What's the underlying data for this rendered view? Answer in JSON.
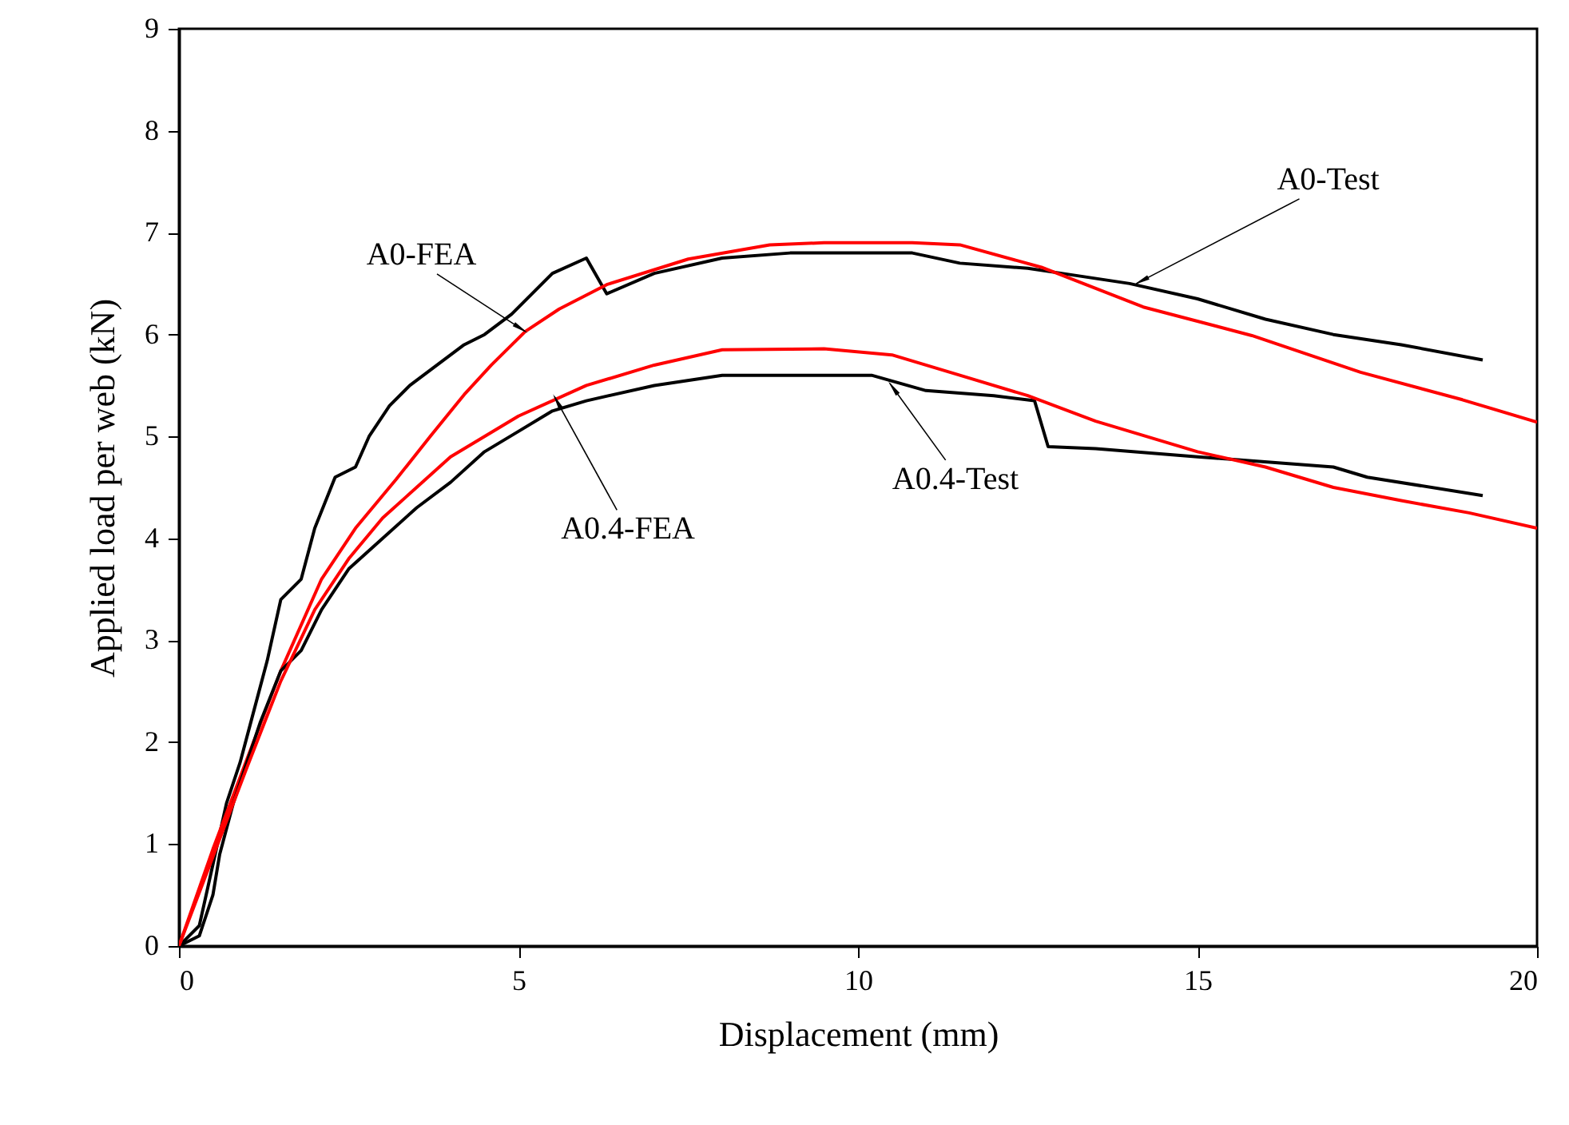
{
  "chart_data": {
    "type": "line",
    "xlabel": "Displacement (mm)",
    "ylabel": "Applied load per web (kN)",
    "xlim": [
      0,
      20
    ],
    "xticks": [
      0,
      5,
      10,
      15,
      20
    ],
    "ylim": [
      0,
      9
    ],
    "yticks": [
      0,
      1,
      2,
      3,
      4,
      5,
      6,
      7,
      8,
      9
    ],
    "grid": false,
    "marker": "none",
    "line_style": "solid",
    "series": [
      {
        "color": "#000000",
        "x": [
          0,
          0.3,
          0.5,
          0.7,
          0.9,
          1.1,
          1.3,
          1.5,
          1.8,
          2.0,
          2.3,
          2.6,
          2.8,
          3.1,
          3.4,
          3.8,
          4.2,
          4.5,
          4.9,
          5.2,
          5.5,
          6.0,
          6.3,
          7,
          8,
          9,
          10.8,
          11.5,
          12.5,
          13,
          14,
          15,
          16,
          17,
          18,
          19.2
        ],
        "values": [
          0,
          0.2,
          0.8,
          1.4,
          1.8,
          2.3,
          2.8,
          3.4,
          3.6,
          4.1,
          4.6,
          4.7,
          5.0,
          5.3,
          5.5,
          5.7,
          5.9,
          6.0,
          6.2,
          6.4,
          6.6,
          6.75,
          6.4,
          6.6,
          6.75,
          6.8,
          6.8,
          6.7,
          6.65,
          6.6,
          6.5,
          6.35,
          6.15,
          6.0,
          5.9,
          5.75
        ]
      },
      {
        "color": "#ff0000",
        "x": [
          0,
          0.5,
          1.0,
          1.5,
          2.1,
          2.6,
          3.2,
          3.7,
          4.2,
          4.6,
          5.1,
          5.6,
          6.3,
          7.5,
          8.7,
          9.5,
          10.8,
          11.5,
          12.7,
          14.2,
          15.8,
          17.4,
          18.9,
          20
        ],
        "values": [
          0,
          0.95,
          1.83,
          2.7,
          3.6,
          4.1,
          4.58,
          5.0,
          5.41,
          5.7,
          6.03,
          6.25,
          6.49,
          6.74,
          6.88,
          6.9,
          6.9,
          6.88,
          6.66,
          6.27,
          5.99,
          5.63,
          5.36,
          5.14
        ]
      },
      {
        "color": "#000000",
        "x": [
          0,
          0.3,
          0.5,
          0.6,
          0.8,
          1,
          1.2,
          1.5,
          1.8,
          2.1,
          2.5,
          3,
          3.5,
          4,
          4.5,
          5,
          5.5,
          6,
          7,
          8,
          10.2,
          11,
          12,
          12.6,
          12.8,
          13.5,
          15,
          17,
          17.5,
          19.2
        ],
        "values": [
          0,
          0.1,
          0.5,
          0.9,
          1.4,
          1.8,
          2.2,
          2.7,
          2.9,
          3.3,
          3.7,
          4.0,
          4.3,
          4.55,
          4.85,
          5.05,
          5.25,
          5.35,
          5.5,
          5.6,
          5.6,
          5.45,
          5.4,
          5.35,
          4.9,
          4.88,
          4.8,
          4.7,
          4.6,
          4.42
        ]
      },
      {
        "color": "#ff0000",
        "x": [
          0,
          1,
          1.5,
          2,
          2.5,
          3,
          3.5,
          4,
          5,
          6,
          7,
          8,
          9.5,
          10.5,
          11.5,
          12.5,
          13.5,
          15,
          16,
          17,
          18,
          19,
          20
        ],
        "values": [
          0,
          1.75,
          2.6,
          3.3,
          3.8,
          4.2,
          4.5,
          4.8,
          5.2,
          5.5,
          5.7,
          5.85,
          5.86,
          5.8,
          5.6,
          5.4,
          5.15,
          4.85,
          4.7,
          4.5,
          4.37,
          4.25,
          4.1
        ]
      }
    ],
    "annotations": [
      {
        "text": "A0-Test",
        "x": 14.1,
        "y": 6.5
      },
      {
        "text": "A0-FEA",
        "x": 5.1,
        "y": 6.03
      },
      {
        "text": "A0.4-FEA",
        "x": 5.53,
        "y": 5.39
      },
      {
        "text": "A0.4-Test",
        "x": 10.47,
        "y": 5.52
      }
    ]
  }
}
